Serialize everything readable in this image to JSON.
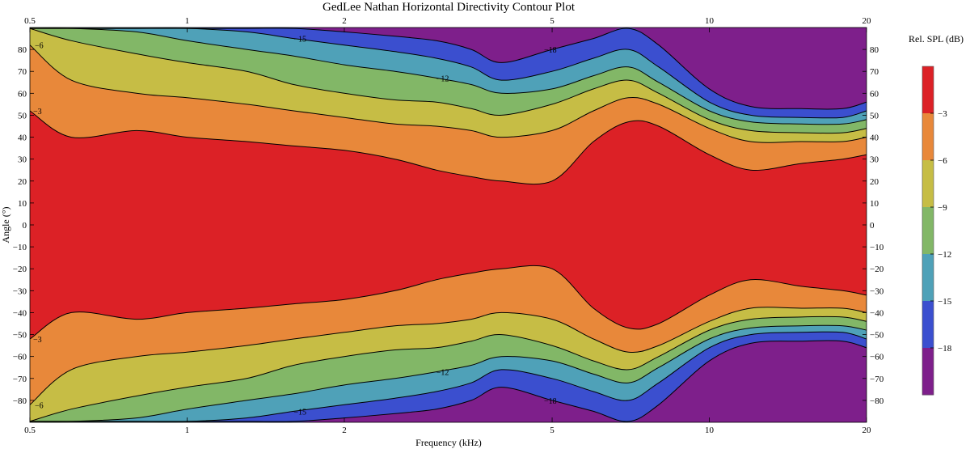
{
  "chart_data": {
    "type": "heatmap",
    "title": "GedLee Nathan Horizontal Directivity Contour Plot",
    "xlabel": "Frequency (kHz)",
    "ylabel": "Angle (°)",
    "colorbar_label": "Rel. SPL (dB)",
    "x_scale": "log",
    "xlim": [
      0.5,
      20
    ],
    "ylim": [
      -90,
      90
    ],
    "x_ticks": [
      0.5,
      1,
      2,
      5,
      10,
      20
    ],
    "x_tick_labels": [
      "0.5",
      "1",
      "2",
      "5",
      "10",
      "20"
    ],
    "y_ticks": [
      80,
      70,
      60,
      50,
      40,
      30,
      20,
      10,
      0,
      -10,
      -20,
      -30,
      -40,
      -50,
      -60,
      -70,
      -80
    ],
    "y_tick_labels": [
      "80",
      "70",
      "60",
      "50",
      "40",
      "30",
      "20",
      "10",
      "0",
      "−10",
      "−20",
      "−30",
      "−40",
      "−50",
      "−60",
      "−70",
      "−80"
    ],
    "levels": [
      -3,
      -6,
      -9,
      -12,
      -15,
      -18
    ],
    "level_labels": [
      "−3",
      "−6",
      "−9",
      "−12",
      "−15",
      "−18"
    ],
    "band_colors": [
      "#DC2126",
      "#E8883A",
      "#C6BD45",
      "#82B767",
      "#4FA1B8",
      "#3B4FCF",
      "#7E1F8B"
    ],
    "frequency_khz": [
      0.5,
      0.6,
      0.8,
      1,
      1.3,
      1.6,
      2,
      2.5,
      3,
      3.5,
      4,
      5,
      6,
      7,
      8,
      10,
      12,
      15,
      18,
      20
    ],
    "contours": [
      {
        "level": -3,
        "angles": [
          52,
          40,
          43,
          40,
          38,
          36,
          34,
          30,
          25,
          22,
          20,
          20,
          38,
          47,
          45,
          32,
          25,
          28,
          30,
          32
        ]
      },
      {
        "level": -6,
        "angles": [
          82,
          66,
          60,
          58,
          55,
          52,
          49,
          46,
          45,
          43,
          40,
          43,
          52,
          58,
          55,
          44,
          38,
          38,
          38,
          40
        ]
      },
      {
        "level": -9,
        "angles": [
          90,
          84,
          78,
          74,
          70,
          64,
          60,
          57,
          56,
          53,
          50,
          55,
          62,
          66,
          60,
          48,
          43,
          42,
          42,
          44
        ]
      },
      {
        "level": -12,
        "angles": [
          90,
          90,
          88,
          84,
          80,
          77,
          73,
          70,
          67,
          64,
          60,
          62,
          68,
          72,
          65,
          52,
          47,
          46,
          46,
          48
        ]
      },
      {
        "level": -15,
        "angles": [
          90,
          90,
          90,
          90,
          88,
          85,
          82,
          79,
          76,
          72,
          66,
          70,
          76,
          80,
          72,
          56,
          50,
          49,
          49,
          52
        ]
      },
      {
        "level": -18,
        "angles": [
          90,
          90,
          90,
          90,
          90,
          90,
          88,
          86,
          84,
          80,
          74,
          80,
          85,
          90,
          82,
          62,
          54,
          53,
          53,
          56
        ]
      }
    ]
  }
}
